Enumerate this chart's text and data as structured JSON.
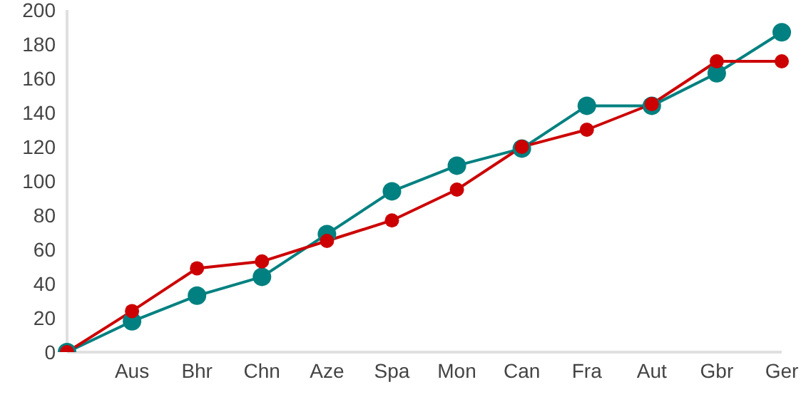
{
  "chart_data": {
    "type": "line",
    "categories": [
      null,
      "Aus",
      "Bhr",
      "Chn",
      "Aze",
      "Spa",
      "Mon",
      "Can",
      "Fra",
      "Aut",
      "Gbr",
      "Ger"
    ],
    "series": [
      {
        "color": "#008080",
        "values": [
          0,
          18,
          33,
          44,
          69,
          94,
          109,
          119,
          144,
          144,
          163,
          187
        ]
      },
      {
        "color": "#cc0000",
        "values": [
          0,
          24,
          49,
          53,
          65,
          77,
          95,
          120,
          130,
          145,
          170,
          170
        ]
      }
    ],
    "ylim": [
      0,
      200
    ],
    "yticks": [
      0,
      20,
      40,
      60,
      80,
      100,
      120,
      140,
      160,
      180,
      200
    ],
    "grid": false,
    "legend": false,
    "marker": "circle",
    "line_style": "solid"
  }
}
